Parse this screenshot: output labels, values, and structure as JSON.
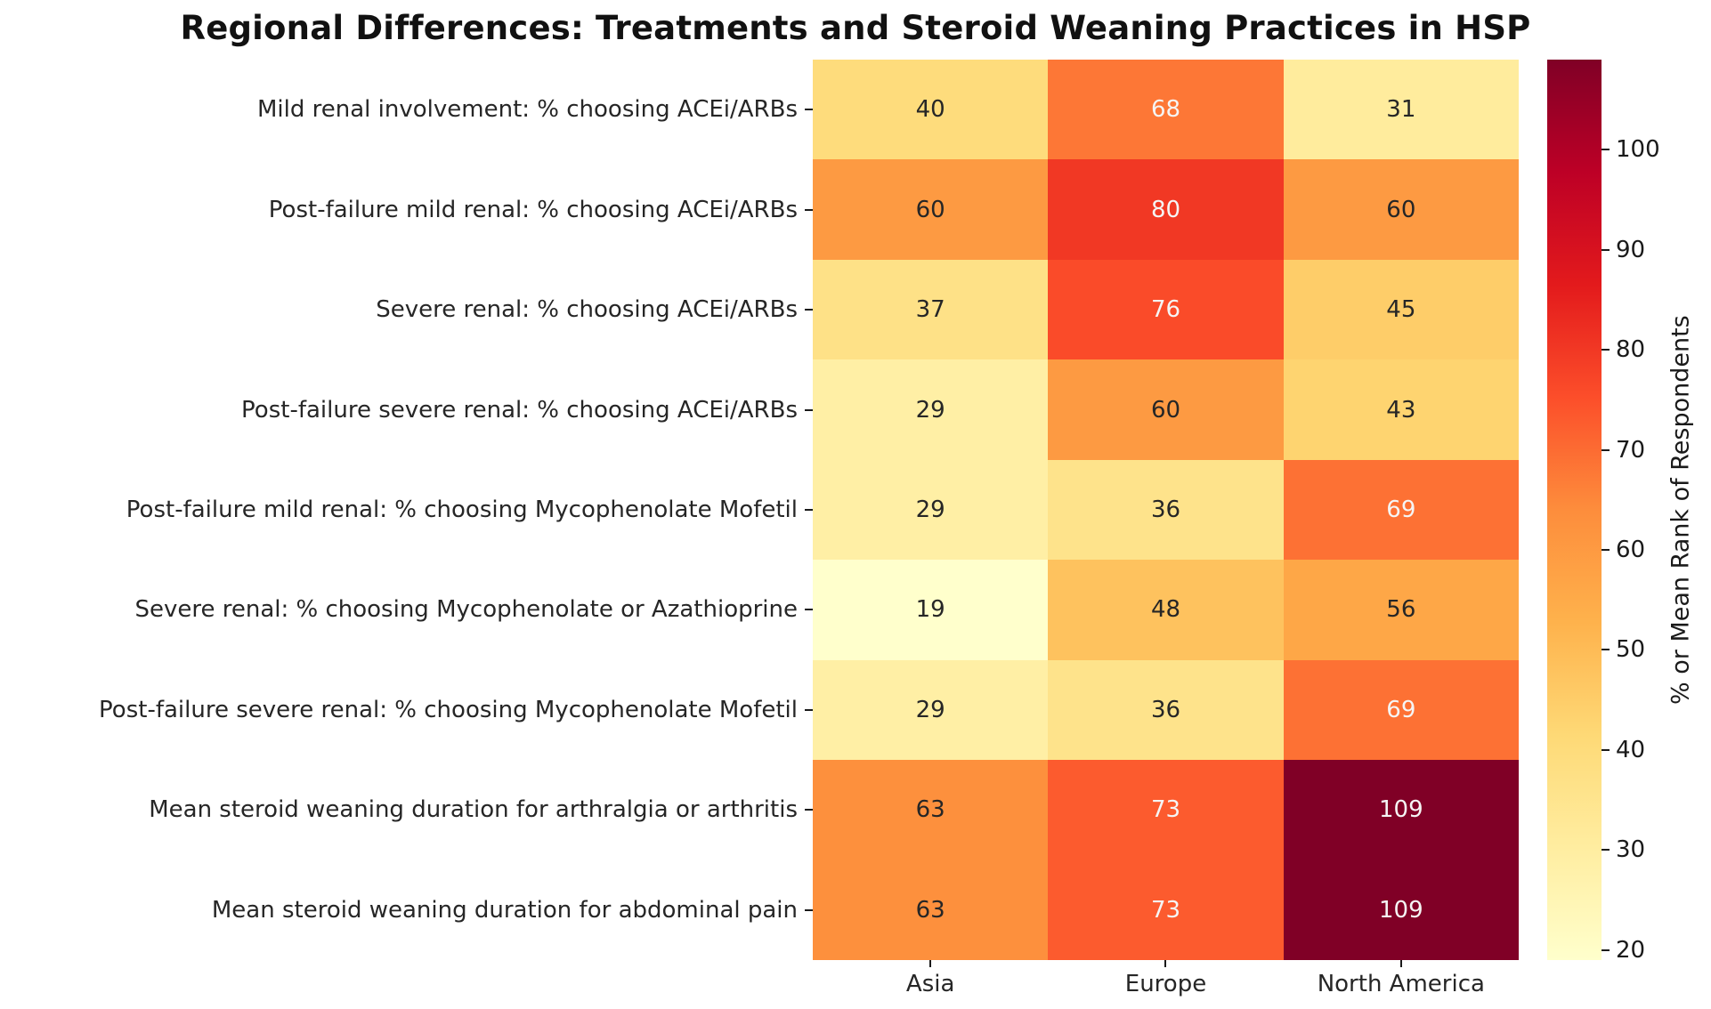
{
  "chart_data": {
    "type": "heatmap",
    "title": "Regional Differences: Treatments and Steroid Weaning Practices in HSP",
    "categories": [
      "Asia",
      "Europe",
      "North America"
    ],
    "rows": [
      "Mild renal involvement: % choosing ACEi/ARBs",
      "Post-failure mild renal: % choosing ACEi/ARBs",
      "Severe renal: % choosing ACEi/ARBs",
      "Post-failure severe renal: % choosing ACEi/ARBs",
      "Post-failure mild renal: % choosing Mycophenolate Mofetil",
      "Severe renal: % choosing Mycophenolate or Azathioprine",
      "Post-failure severe renal: % choosing Mycophenolate Mofetil",
      "Mean steroid weaning duration for arthralgia or arthritis",
      "Mean steroid weaning duration for abdominal pain"
    ],
    "values": [
      [
        40,
        68,
        31
      ],
      [
        60,
        80,
        60
      ],
      [
        37,
        76,
        45
      ],
      [
        29,
        60,
        43
      ],
      [
        29,
        36,
        69
      ],
      [
        19,
        48,
        56
      ],
      [
        29,
        36,
        69
      ],
      [
        63,
        73,
        109
      ],
      [
        63,
        73,
        109
      ]
    ],
    "vmin": 19,
    "vmax": 109,
    "grid": false,
    "legend_position": "right-colorbar",
    "colorbar": {
      "label": "% or Mean Rank of Respondents",
      "ticks": [
        20,
        30,
        40,
        50,
        60,
        70,
        80,
        90,
        100
      ]
    },
    "colormap": {
      "name": "YlOrRd",
      "stops": [
        "#ffffcc",
        "#ffeda0",
        "#fed976",
        "#feb24c",
        "#fd8d3c",
        "#fc4e2a",
        "#e31a1c",
        "#bd0026",
        "#800026"
      ]
    },
    "annotation_colors": {
      "dark": "#262626",
      "light": "#f5f5f5"
    }
  }
}
